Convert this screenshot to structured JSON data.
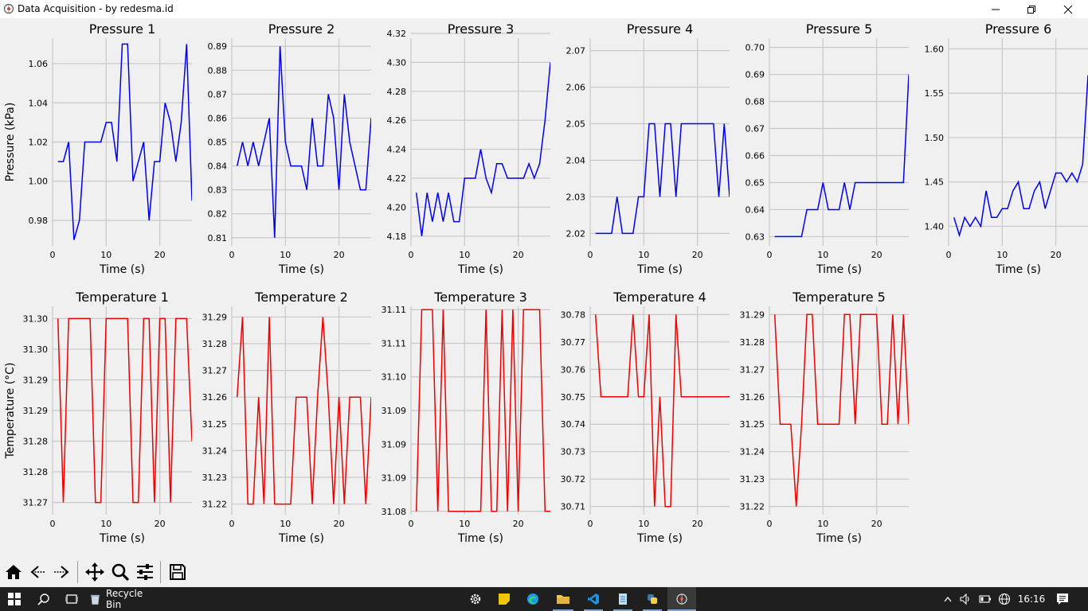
{
  "window": {
    "title": "Data Acquisition - by redesma.id"
  },
  "colors": {
    "pressure_line": "#0000ee",
    "temperature_line": "#ee0000",
    "grid": "#c8c8c8",
    "background": "#f0f0f0"
  },
  "chart_data": [
    {
      "type": "line",
      "title": "Pressure 1",
      "ylabel": "Pressure (kPa)",
      "xlabel": "Time (s)",
      "xlim": [
        0,
        26
      ],
      "ylim": [
        0.967,
        1.073
      ],
      "xticks": [
        0,
        10,
        20
      ],
      "yticks": [
        "0.98",
        "1.00",
        "1.02",
        "1.04",
        "1.06"
      ],
      "ytick_values": [
        0.98,
        1.0,
        1.02,
        1.04,
        1.06
      ],
      "x": [
        1,
        2,
        3,
        4,
        5,
        6,
        7,
        8,
        9,
        10,
        11,
        12,
        13,
        14,
        15,
        16,
        17,
        18,
        19,
        20,
        21,
        22,
        23,
        24,
        25,
        26
      ],
      "y": [
        1.01,
        1.01,
        1.02,
        0.97,
        0.98,
        1.02,
        1.02,
        1.02,
        1.02,
        1.03,
        1.03,
        1.01,
        1.07,
        1.07,
        1.0,
        1.01,
        1.02,
        0.98,
        1.01,
        1.01,
        1.04,
        1.03,
        1.01,
        1.03,
        1.07,
        0.99
      ]
    },
    {
      "type": "line",
      "title": "Pressure 2",
      "ylabel": "",
      "xlabel": "Time (s)",
      "xlim": [
        0,
        26
      ],
      "ylim": [
        0.8066,
        0.8934
      ],
      "xticks": [
        0,
        10,
        20
      ],
      "yticks": [
        "0.81",
        "0.82",
        "0.83",
        "0.84",
        "0.85",
        "0.86",
        "0.87",
        "0.88",
        "0.89"
      ],
      "ytick_values": [
        0.81,
        0.82,
        0.83,
        0.84,
        0.85,
        0.86,
        0.87,
        0.88,
        0.89
      ],
      "x": [
        1,
        2,
        3,
        4,
        5,
        6,
        7,
        8,
        9,
        10,
        11,
        12,
        13,
        14,
        15,
        16,
        17,
        18,
        19,
        20,
        21,
        22,
        23,
        24,
        25,
        26
      ],
      "y": [
        0.84,
        0.85,
        0.84,
        0.85,
        0.84,
        0.85,
        0.86,
        0.81,
        0.89,
        0.85,
        0.84,
        0.84,
        0.84,
        0.83,
        0.86,
        0.84,
        0.84,
        0.87,
        0.86,
        0.83,
        0.87,
        0.85,
        0.84,
        0.83,
        0.83,
        0.86
      ]
    },
    {
      "type": "line",
      "title": "Pressure 3",
      "ylabel": "",
      "xlabel": "Time (s)",
      "xlim": [
        0,
        26
      ],
      "ylim": [
        4.1733,
        4.3167
      ],
      "xticks": [
        0,
        10,
        20
      ],
      "yticks": [
        "4.18",
        "4.20",
        "4.22",
        "4.24",
        "4.26",
        "4.28",
        "4.30",
        "4.32"
      ],
      "ytick_values": [
        4.18,
        4.2,
        4.22,
        4.24,
        4.26,
        4.28,
        4.3,
        4.32
      ],
      "x": [
        1,
        2,
        3,
        4,
        5,
        6,
        7,
        8,
        9,
        10,
        11,
        12,
        13,
        14,
        15,
        16,
        17,
        18,
        19,
        20,
        21,
        22,
        23,
        24,
        25,
        26
      ],
      "y": [
        4.21,
        4.18,
        4.21,
        4.19,
        4.21,
        4.19,
        4.21,
        4.19,
        4.19,
        4.22,
        4.22,
        4.22,
        4.24,
        4.22,
        4.21,
        4.23,
        4.23,
        4.22,
        4.22,
        4.22,
        4.22,
        4.23,
        4.22,
        4.23,
        4.26,
        4.3
      ]
    },
    {
      "type": "line",
      "title": "Pressure 4",
      "ylabel": "",
      "xlabel": "Time (s)",
      "xlim": [
        0,
        26
      ],
      "ylim": [
        2.0166,
        2.0734
      ],
      "xticks": [
        0,
        10,
        20
      ],
      "yticks": [
        "2.02",
        "2.03",
        "2.04",
        "2.05",
        "2.06",
        "2.07"
      ],
      "ytick_values": [
        2.02,
        2.03,
        2.04,
        2.05,
        2.06,
        2.07
      ],
      "x": [
        1,
        2,
        3,
        4,
        5,
        6,
        7,
        8,
        9,
        10,
        11,
        12,
        13,
        14,
        15,
        16,
        17,
        18,
        19,
        20,
        21,
        22,
        23,
        24,
        25,
        26
      ],
      "y": [
        2.02,
        2.02,
        2.02,
        2.02,
        2.03,
        2.02,
        2.02,
        2.02,
        2.03,
        2.03,
        2.05,
        2.05,
        2.03,
        2.05,
        2.05,
        2.03,
        2.05,
        2.05,
        2.05,
        2.05,
        2.05,
        2.05,
        2.05,
        2.03,
        2.05,
        2.03
      ]
    },
    {
      "type": "line",
      "title": "Pressure 5",
      "ylabel": "",
      "xlabel": "Time (s)",
      "xlim": [
        0,
        26
      ],
      "ylim": [
        0.6266,
        0.7034
      ],
      "xticks": [
        0,
        10,
        20
      ],
      "yticks": [
        "0.63",
        "0.64",
        "0.65",
        "0.66",
        "0.67",
        "0.68",
        "0.69",
        "0.70"
      ],
      "ytick_values": [
        0.63,
        0.64,
        0.65,
        0.66,
        0.67,
        0.68,
        0.69,
        0.7
      ],
      "x": [
        1,
        2,
        3,
        4,
        5,
        6,
        7,
        8,
        9,
        10,
        11,
        12,
        13,
        14,
        15,
        16,
        17,
        18,
        19,
        20,
        21,
        22,
        23,
        24,
        25,
        26
      ],
      "y": [
        0.63,
        0.63,
        0.63,
        0.63,
        0.63,
        0.63,
        0.64,
        0.64,
        0.64,
        0.65,
        0.64,
        0.64,
        0.64,
        0.65,
        0.64,
        0.65,
        0.65,
        0.65,
        0.65,
        0.65,
        0.65,
        0.65,
        0.65,
        0.65,
        0.65,
        0.69
      ]
    },
    {
      "type": "line",
      "title": "Pressure 6",
      "ylabel": "",
      "xlabel": "Time (s)",
      "xlim": [
        0,
        26
      ],
      "ylim": [
        1.378,
        1.612
      ],
      "xticks": [
        0,
        10,
        20
      ],
      "yticks": [
        "1.40",
        "1.45",
        "1.50",
        "1.55",
        "1.60"
      ],
      "ytick_values": [
        1.4,
        1.45,
        1.5,
        1.55,
        1.6
      ],
      "x": [
        1,
        2,
        3,
        4,
        5,
        6,
        7,
        8,
        9,
        10,
        11,
        12,
        13,
        14,
        15,
        16,
        17,
        18,
        19,
        20,
        21,
        22,
        23,
        24,
        25,
        26
      ],
      "y": [
        1.41,
        1.39,
        1.41,
        1.4,
        1.41,
        1.4,
        1.44,
        1.41,
        1.41,
        1.42,
        1.42,
        1.44,
        1.45,
        1.42,
        1.42,
        1.44,
        1.45,
        1.42,
        1.44,
        1.46,
        1.46,
        1.45,
        1.46,
        1.45,
        1.47,
        1.57
      ]
    },
    {
      "type": "line",
      "title": "Temperature 1",
      "ylabel": "Temperature (°C)",
      "xlabel": "Time (s)",
      "xlim": [
        0,
        26
      ],
      "ylim": [
        31.268,
        31.302
      ],
      "xticks": [
        0,
        10,
        20
      ],
      "yticks": [
        "31.27",
        "31.28",
        "31.28",
        "31.29",
        "31.29",
        "31.30",
        "31.30"
      ],
      "ytick_values": [
        31.27,
        31.275,
        31.28,
        31.285,
        31.29,
        31.295,
        31.3
      ],
      "x": [
        1,
        2,
        3,
        4,
        5,
        6,
        7,
        8,
        9,
        10,
        11,
        12,
        13,
        14,
        15,
        16,
        17,
        18,
        19,
        20,
        21,
        22,
        23,
        24,
        25,
        26
      ],
      "y": [
        31.3,
        31.27,
        31.3,
        31.3,
        31.3,
        31.3,
        31.3,
        31.27,
        31.27,
        31.3,
        31.3,
        31.3,
        31.3,
        31.3,
        31.27,
        31.27,
        31.3,
        31.3,
        31.27,
        31.3,
        31.3,
        31.27,
        31.3,
        31.3,
        31.3,
        31.28
      ]
    },
    {
      "type": "line",
      "title": "Temperature 2",
      "ylabel": "",
      "xlabel": "Time (s)",
      "xlim": [
        0,
        26
      ],
      "ylim": [
        31.216,
        31.294
      ],
      "xticks": [
        0,
        10,
        20
      ],
      "yticks": [
        "31.22",
        "31.23",
        "31.24",
        "31.25",
        "31.26",
        "31.27",
        "31.28",
        "31.29"
      ],
      "ytick_values": [
        31.22,
        31.23,
        31.24,
        31.25,
        31.26,
        31.27,
        31.28,
        31.29
      ],
      "x": [
        1,
        2,
        3,
        4,
        5,
        6,
        7,
        8,
        9,
        10,
        11,
        12,
        13,
        14,
        15,
        16,
        17,
        18,
        19,
        20,
        21,
        22,
        23,
        24,
        25,
        26
      ],
      "y": [
        31.26,
        31.29,
        31.22,
        31.22,
        31.26,
        31.22,
        31.29,
        31.22,
        31.22,
        31.22,
        31.22,
        31.26,
        31.26,
        31.26,
        31.22,
        31.26,
        31.29,
        31.26,
        31.22,
        31.26,
        31.22,
        31.26,
        31.26,
        31.26,
        31.22,
        31.26
      ]
    },
    {
      "type": "line",
      "title": "Temperature 3",
      "ylabel": "",
      "xlabel": "Time (s)",
      "xlim": [
        0,
        26
      ],
      "ylim": [
        31.0795,
        31.1105
      ],
      "xticks": [
        0,
        10,
        20
      ],
      "yticks": [
        "31.08",
        "31.09",
        "31.09",
        "31.09",
        "31.10",
        "31.11",
        "31.11"
      ],
      "ytick_values": [
        31.08,
        31.085,
        31.09,
        31.095,
        31.1,
        31.105,
        31.11
      ],
      "x": [
        1,
        2,
        3,
        4,
        5,
        6,
        7,
        8,
        9,
        10,
        11,
        12,
        13,
        14,
        15,
        16,
        17,
        18,
        19,
        20,
        21,
        22,
        23,
        24,
        25,
        26
      ],
      "y": [
        31.08,
        31.11,
        31.11,
        31.11,
        31.08,
        31.11,
        31.08,
        31.08,
        31.08,
        31.08,
        31.08,
        31.08,
        31.08,
        31.11,
        31.08,
        31.08,
        31.11,
        31.08,
        31.11,
        31.08,
        31.11,
        31.11,
        31.11,
        31.11,
        31.08,
        31.08
      ]
    },
    {
      "type": "line",
      "title": "Temperature 4",
      "ylabel": "",
      "xlabel": "Time (s)",
      "xlim": [
        0,
        26
      ],
      "ylim": [
        30.707,
        30.783
      ],
      "xticks": [
        0,
        10,
        20
      ],
      "yticks": [
        "30.71",
        "30.72",
        "30.73",
        "30.74",
        "30.75",
        "30.76",
        "30.77",
        "30.78"
      ],
      "ytick_values": [
        30.71,
        30.72,
        30.73,
        30.74,
        30.75,
        30.76,
        30.77,
        30.78
      ],
      "x": [
        1,
        2,
        3,
        4,
        5,
        6,
        7,
        8,
        9,
        10,
        11,
        12,
        13,
        14,
        15,
        16,
        17,
        18,
        19,
        20,
        21,
        22,
        23,
        24,
        25,
        26
      ],
      "y": [
        30.78,
        30.75,
        30.75,
        30.75,
        30.75,
        30.75,
        30.75,
        30.78,
        30.75,
        30.75,
        30.78,
        30.71,
        30.75,
        30.71,
        30.71,
        30.78,
        30.75,
        30.75,
        30.75,
        30.75,
        30.75,
        30.75,
        30.75,
        30.75,
        30.75,
        30.75
      ]
    },
    {
      "type": "line",
      "title": "Temperature 5",
      "ylabel": "",
      "xlabel": "Time (s)",
      "xlim": [
        0,
        26
      ],
      "ylim": [
        31.217,
        31.293
      ],
      "xticks": [
        0,
        10,
        20
      ],
      "yticks": [
        "31.22",
        "31.23",
        "31.24",
        "31.25",
        "31.26",
        "31.27",
        "31.28",
        "31.29"
      ],
      "ytick_values": [
        31.22,
        31.23,
        31.24,
        31.25,
        31.26,
        31.27,
        31.28,
        31.29
      ],
      "x": [
        1,
        2,
        3,
        4,
        5,
        6,
        7,
        8,
        9,
        10,
        11,
        12,
        13,
        14,
        15,
        16,
        17,
        18,
        19,
        20,
        21,
        22,
        23,
        24,
        25,
        26
      ],
      "y": [
        31.29,
        31.25,
        31.25,
        31.25,
        31.22,
        31.25,
        31.29,
        31.29,
        31.25,
        31.25,
        31.25,
        31.25,
        31.25,
        31.29,
        31.29,
        31.25,
        31.29,
        31.29,
        31.29,
        31.29,
        31.25,
        31.25,
        31.29,
        31.25,
        31.29,
        31.25
      ]
    }
  ],
  "toolbar": {
    "items": [
      "home-icon",
      "back-icon",
      "forward-icon",
      "pan-icon",
      "zoom-icon",
      "configure-icon",
      "save-icon"
    ]
  },
  "taskbar": {
    "recycle_bin_label": "Recycle Bin",
    "clock": "16:16"
  }
}
